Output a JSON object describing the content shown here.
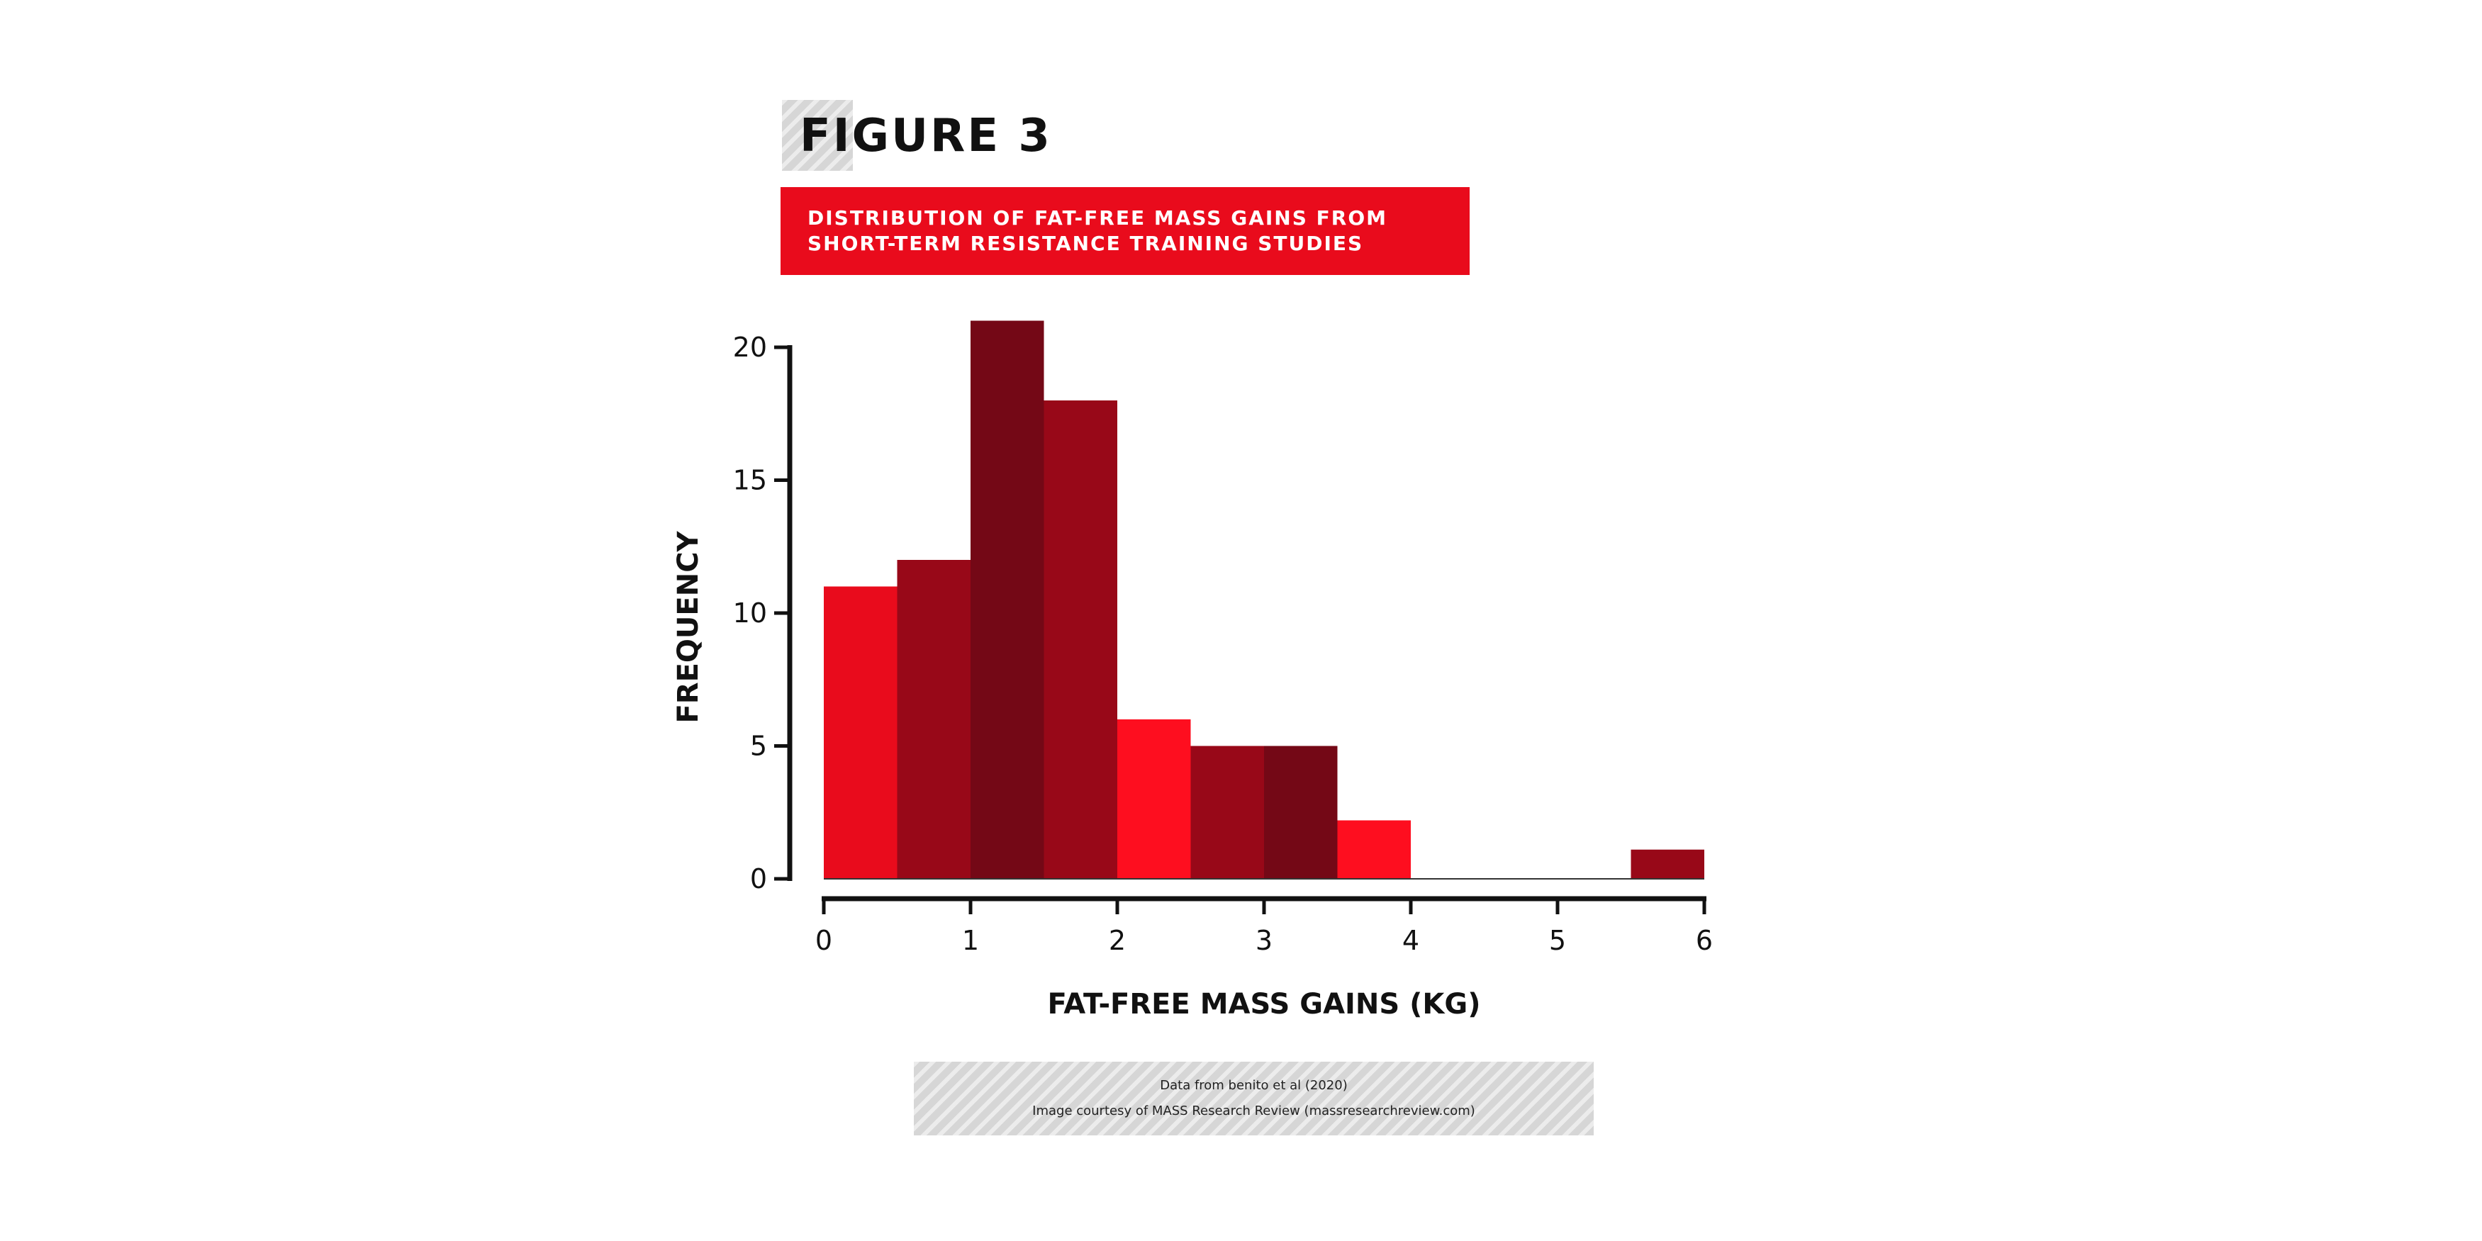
{
  "figure": {
    "label": "FIGURE 3",
    "title_lines": [
      "DISTRIBUTION OF FAT-FREE MASS GAINS FROM",
      "SHORT-TERM RESISTANCE TRAINING STUDIES"
    ],
    "title_bg_color": "#e90b1c"
  },
  "source": {
    "line1": "Data from benito et al (2020)",
    "line2": "Image courtesy of MASS Research Review (massresearchreview.com)"
  },
  "chart_data": {
    "type": "bar",
    "title": "",
    "xlabel": "FAT-FREE MASS GAINS (KG)",
    "ylabel": "FREQUENCY",
    "bin_width": 0.5,
    "bins": [
      0,
      0.5,
      1,
      1.5,
      2,
      2.5,
      3,
      3.5,
      4,
      4.5,
      5,
      5.5
    ],
    "values": [
      11,
      12,
      21,
      18,
      6,
      5,
      5,
      2.2,
      0,
      0,
      0,
      1.1
    ],
    "bar_colors": [
      "#e90b1c",
      "#980818",
      "#740816",
      "#980818",
      "#fe0e1f",
      "#980818",
      "#740816",
      "#fe0e1f",
      "#e90b1c",
      "#e90b1c",
      "#e90b1c",
      "#980818"
    ],
    "xlim": [
      0,
      6
    ],
    "ylim": [
      0,
      20
    ],
    "xticks": [
      0,
      1,
      2,
      3,
      4,
      5,
      6
    ],
    "yticks": [
      0,
      5,
      10,
      15,
      20
    ],
    "grid": false,
    "legend": "none"
  }
}
